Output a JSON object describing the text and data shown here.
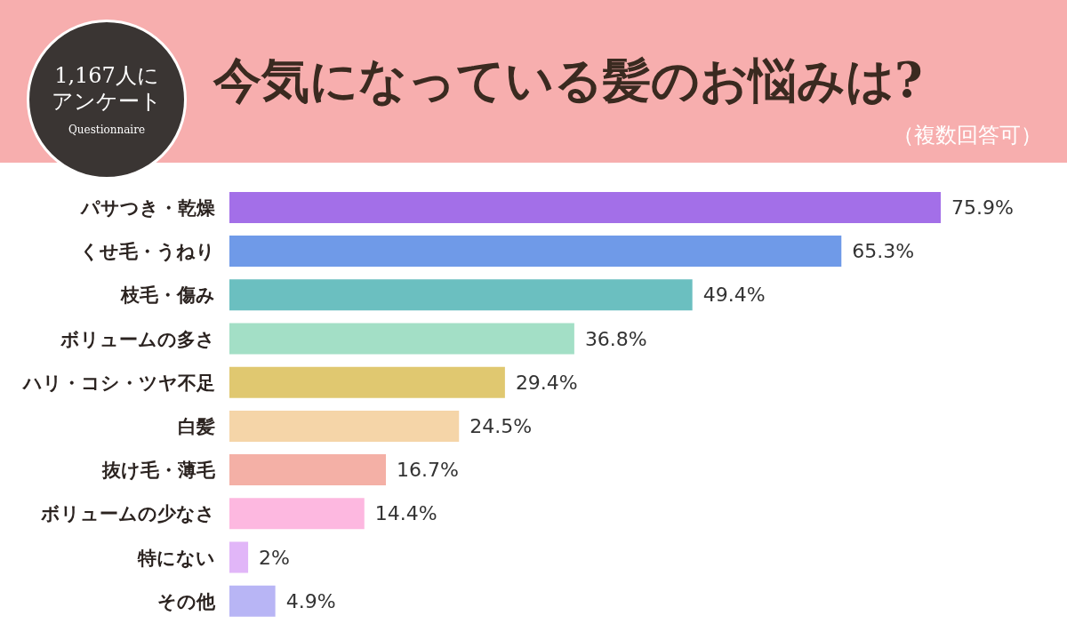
{
  "chart_data": {
    "type": "bar",
    "orientation": "horizontal",
    "title": "今気になっている髪のお悩みは?",
    "subtitle": "（複数回答可）",
    "annotations": [
      "1,167人にアンケート",
      "Questionnaire"
    ],
    "categories": [
      "パサつき・乾燥",
      "くせ毛・うねり",
      "枝毛・傷み",
      "ボリュームの多さ",
      "ハリ・コシ・ツヤ不足",
      "白髪",
      "抜け毛・薄毛",
      "ボリュームの少なさ",
      "特にない",
      "その他"
    ],
    "values": [
      75.9,
      65.3,
      49.4,
      36.8,
      29.4,
      24.5,
      16.7,
      14.4,
      2,
      4.9
    ],
    "value_labels": [
      "75.9%",
      "65.3%",
      "49.4%",
      "36.8%",
      "29.4%",
      "24.5%",
      "16.7%",
      "14.4%",
      "2%",
      "4.9%"
    ],
    "colors": [
      "#a36fe8",
      "#6f9ae8",
      "#6bbfc0",
      "#a3dfc6",
      "#e0c870",
      "#f5d5a8",
      "#f4b0a6",
      "#fdb8e0",
      "#e1b6f8",
      "#b8b5f5"
    ],
    "relative": false
  }
}
